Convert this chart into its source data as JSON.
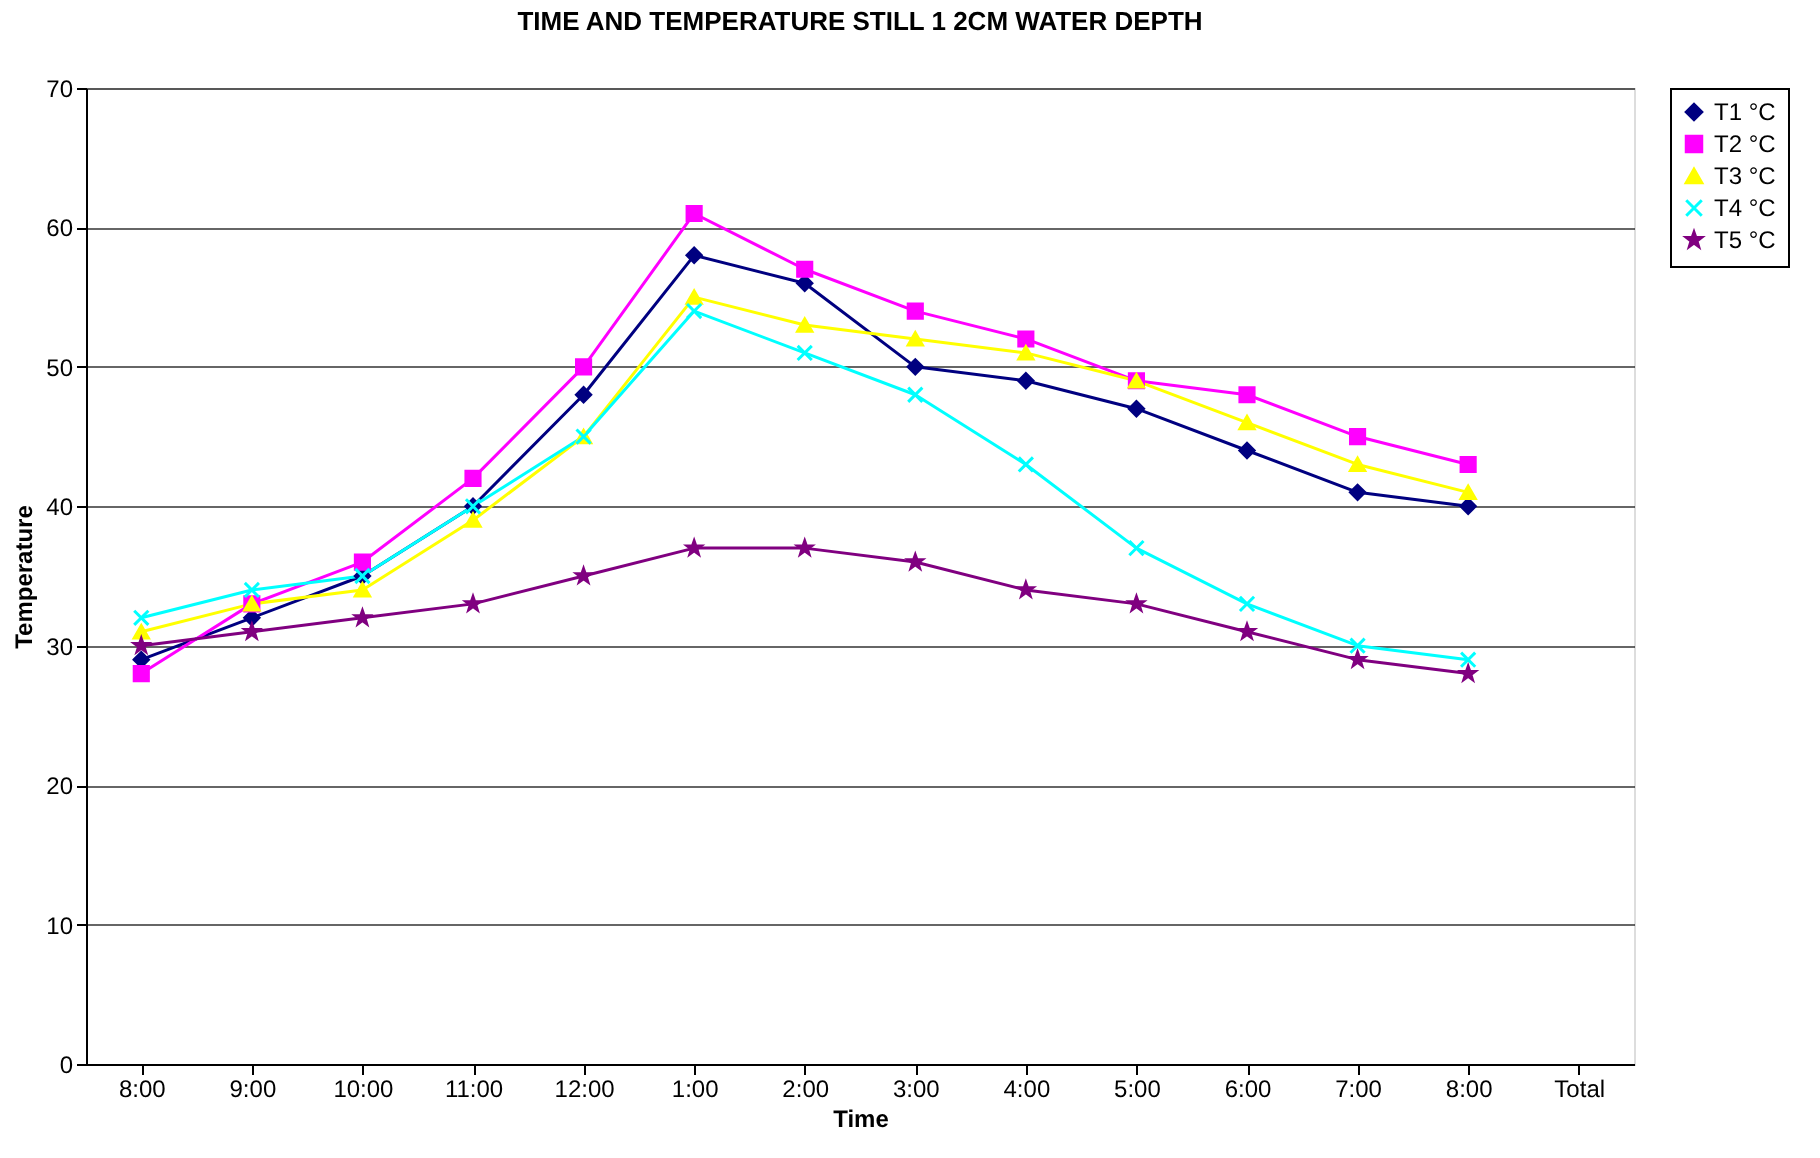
{
  "chart_data": {
    "type": "line",
    "title": "TIME AND TEMPERATURE STILL 1 2CM WATER DEPTH",
    "xlabel": "Time",
    "ylabel": "Temperature",
    "categories": [
      "8:00",
      "9:00",
      "10:00",
      "11:00",
      "12:00",
      "1:00",
      "2:00",
      "3:00",
      "4:00",
      "5:00",
      "6:00",
      "7:00",
      "8:00",
      "Total"
    ],
    "series": [
      {
        "name": "T1 °C",
        "color": "#000080",
        "marker": "diamond",
        "values": [
          29,
          32,
          35,
          40,
          48,
          58,
          56,
          50,
          49,
          47,
          44,
          41,
          40,
          null
        ]
      },
      {
        "name": "T2 °C",
        "color": "#ff00ff",
        "marker": "square",
        "values": [
          28,
          33,
          36,
          42,
          50,
          61,
          57,
          54,
          52,
          49,
          48,
          45,
          43,
          null
        ]
      },
      {
        "name": "T3 °C",
        "color": "#ffff00",
        "marker": "triangle",
        "values": [
          31,
          33,
          34,
          39,
          45,
          55,
          53,
          52,
          51,
          49,
          46,
          43,
          41,
          null
        ]
      },
      {
        "name": "T4 °C",
        "color": "#00ffff",
        "marker": "cross",
        "values": [
          32,
          34,
          35,
          40,
          45,
          54,
          51,
          48,
          43,
          37,
          33,
          30,
          29,
          null
        ]
      },
      {
        "name": "T5 °C",
        "color": "#800080",
        "marker": "star",
        "values": [
          30,
          31,
          32,
          33,
          35,
          37,
          37,
          36,
          34,
          33,
          31,
          29,
          28,
          null
        ]
      }
    ],
    "ylim": [
      0,
      70
    ],
    "yticks": [
      0,
      10,
      20,
      30,
      40,
      50,
      60,
      70
    ],
    "grid": "y",
    "legend": "right",
    "line_style": "solid"
  }
}
